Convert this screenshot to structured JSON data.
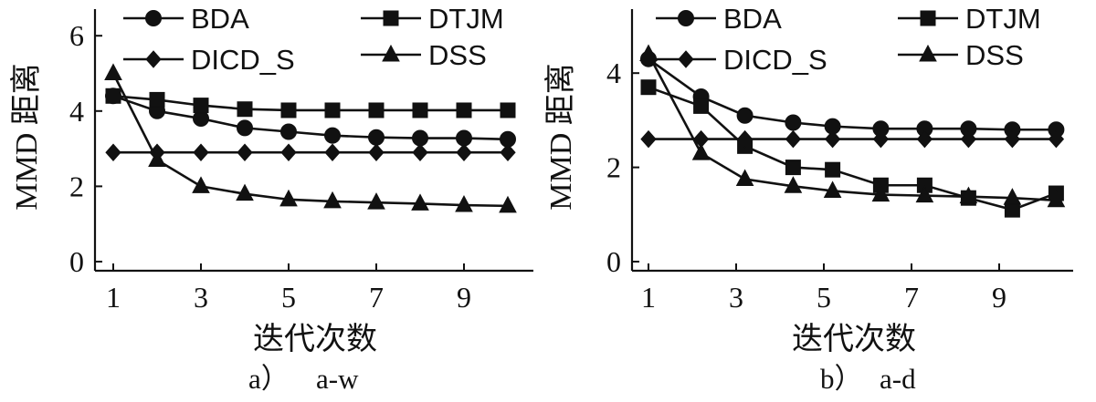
{
  "chart_data": [
    {
      "type": "line",
      "caption_letter": "a）",
      "caption_name": "a-w",
      "xlabel": "迭代次数",
      "ylabel": "MMD 距离",
      "xlim": [
        1,
        10
      ],
      "ylim": [
        0,
        6
      ],
      "xticks": [
        1,
        3,
        5,
        7,
        9
      ],
      "yticks": [
        0,
        2,
        4,
        6
      ],
      "legend_position": "top",
      "series": [
        {
          "name": "BDA",
          "marker": "circle",
          "points": [
            [
              1,
              4.4
            ],
            [
              2,
              4.0
            ],
            [
              3,
              3.8
            ],
            [
              4,
              3.55
            ],
            [
              5,
              3.45
            ],
            [
              6,
              3.35
            ],
            [
              7,
              3.3
            ],
            [
              8,
              3.28
            ],
            [
              9,
              3.28
            ],
            [
              10,
              3.25
            ]
          ]
        },
        {
          "name": "DTJM",
          "marker": "square",
          "points": [
            [
              1,
              4.4
            ],
            [
              2,
              4.3
            ],
            [
              3,
              4.15
            ],
            [
              4,
              4.05
            ],
            [
              5,
              4.02
            ],
            [
              6,
              4.02
            ],
            [
              7,
              4.02
            ],
            [
              8,
              4.02
            ],
            [
              9,
              4.02
            ],
            [
              10,
              4.02
            ]
          ]
        },
        {
          "name": "DICD_S",
          "marker": "diamond",
          "points": [
            [
              1,
              2.9
            ],
            [
              2,
              2.9
            ],
            [
              3,
              2.9
            ],
            [
              4,
              2.9
            ],
            [
              5,
              2.9
            ],
            [
              6,
              2.9
            ],
            [
              7,
              2.9
            ],
            [
              8,
              2.9
            ],
            [
              9,
              2.9
            ],
            [
              10,
              2.9
            ]
          ]
        },
        {
          "name": "DSS",
          "marker": "triangle",
          "points": [
            [
              1,
              5.0
            ],
            [
              2,
              2.7
            ],
            [
              3,
              2.0
            ],
            [
              4,
              1.8
            ],
            [
              5,
              1.65
            ],
            [
              6,
              1.6
            ],
            [
              7,
              1.57
            ],
            [
              8,
              1.54
            ],
            [
              9,
              1.5
            ],
            [
              10,
              1.48
            ]
          ]
        }
      ]
    },
    {
      "type": "line",
      "caption_letter": "b）",
      "caption_name": "a-d",
      "xlabel": "迭代次数",
      "ylabel": "MMD 距离",
      "xlim": [
        1,
        10
      ],
      "ylim": [
        0,
        5
      ],
      "xticks": [
        1,
        3,
        5,
        7,
        9
      ],
      "yticks": [
        0,
        2,
        4
      ],
      "legend_position": "top",
      "series": [
        {
          "name": "BDA",
          "marker": "circle",
          "points": [
            [
              1,
              4.3
            ],
            [
              2.2,
              3.5
            ],
            [
              3.2,
              3.1
            ],
            [
              4.3,
              2.95
            ],
            [
              5.2,
              2.87
            ],
            [
              6.3,
              2.82
            ],
            [
              7.3,
              2.82
            ],
            [
              8.3,
              2.82
            ],
            [
              9.3,
              2.8
            ],
            [
              10.3,
              2.8
            ]
          ]
        },
        {
          "name": "DTJM",
          "marker": "square",
          "points": [
            [
              1,
              3.7
            ],
            [
              2.2,
              3.3
            ],
            [
              3.2,
              2.45
            ],
            [
              4.3,
              2.0
            ],
            [
              5.2,
              1.95
            ],
            [
              6.3,
              1.62
            ],
            [
              7.3,
              1.62
            ],
            [
              8.3,
              1.35
            ],
            [
              9.3,
              1.1
            ],
            [
              10.3,
              1.45
            ]
          ]
        },
        {
          "name": "DICD_S",
          "marker": "diamond",
          "points": [
            [
              1,
              2.6
            ],
            [
              2.2,
              2.6
            ],
            [
              3.2,
              2.6
            ],
            [
              4.3,
              2.6
            ],
            [
              5.2,
              2.6
            ],
            [
              6.3,
              2.6
            ],
            [
              7.3,
              2.6
            ],
            [
              8.3,
              2.6
            ],
            [
              9.3,
              2.6
            ],
            [
              10.3,
              2.6
            ]
          ]
        },
        {
          "name": "DSS",
          "marker": "triangle",
          "points": [
            [
              1,
              4.4
            ],
            [
              2.2,
              2.3
            ],
            [
              3.2,
              1.75
            ],
            [
              4.3,
              1.6
            ],
            [
              5.2,
              1.5
            ],
            [
              6.3,
              1.42
            ],
            [
              7.3,
              1.4
            ],
            [
              8.3,
              1.38
            ],
            [
              9.3,
              1.35
            ],
            [
              10.3,
              1.3
            ]
          ]
        }
      ]
    }
  ]
}
